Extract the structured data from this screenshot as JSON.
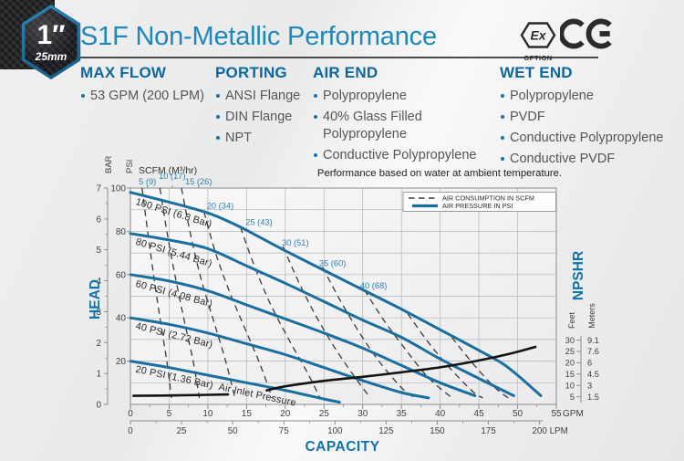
{
  "header": {
    "badge": {
      "size_label": "1″",
      "metric_label": "25mm"
    },
    "title": "S1F Non-Metallic Performance",
    "certifications": {
      "ex_label": "Ex",
      "ex_caption": "OPTION",
      "ce_label": "CE"
    }
  },
  "specs": {
    "columns": [
      {
        "title": "MAX FLOW",
        "items": [
          "53 GPM (200 LPM)"
        ]
      },
      {
        "title": "PORTING",
        "items": [
          "ANSI Flange",
          "DIN Flange",
          "NPT"
        ]
      },
      {
        "title": "AIR END",
        "items": [
          "Polypropylene",
          "40% Glass Filled\nPolypropylene",
          "Conductive Polypropylene"
        ]
      },
      {
        "title": "WET END",
        "items": [
          "Polypropylene",
          "PVDF",
          "Conductive Polypropylene",
          "Conductive PVDF"
        ]
      }
    ]
  },
  "chart_data": {
    "type": "line",
    "note": "Performance based on water at ambient temperature.",
    "top_axis_label": "SCFM (M³/hr)",
    "left_axis": {
      "title": "HEAD",
      "bar_label": "BAR",
      "psi_label": "PSI",
      "bar_ticks": [
        0,
        1,
        2,
        3,
        4,
        5,
        6,
        7
      ],
      "psi_ticks": [
        20,
        40,
        60,
        80,
        100
      ],
      "psi_range": [
        0,
        100
      ]
    },
    "bottom_axis": {
      "title": "CAPACITY",
      "gpm_ticks": [
        0,
        5,
        10,
        15,
        20,
        25,
        30,
        35,
        40,
        45,
        50,
        55
      ],
      "gpm_unit": "GPM",
      "lpm_ticks": [
        0,
        25,
        50,
        75,
        100,
        125,
        150,
        175,
        200
      ],
      "lpm_unit": "LPM",
      "gpm_range": [
        0,
        55
      ]
    },
    "right_axis": {
      "title": "NPSHR",
      "feet_label": "Feet",
      "meters_label": "Meters",
      "ticks": [
        {
          "feet": "30",
          "meters": "9.1"
        },
        {
          "feet": "25",
          "meters": "7.6"
        },
        {
          "feet": "20",
          "meters": "6"
        },
        {
          "feet": "15",
          "meters": "4.5"
        },
        {
          "feet": "10",
          "meters": "3"
        },
        {
          "feet": "5",
          "meters": "1.5"
        }
      ]
    },
    "legend": [
      {
        "label": "AIR CONSUMPTION IN SCFM",
        "style": "dashed"
      },
      {
        "label": "AIR PRESSURE IN PSI",
        "style": "solid"
      }
    ],
    "pressure_curves": [
      {
        "label": "100 PSI (6.8 Bar)",
        "label_at": [
          0.6,
          92.5
        ],
        "label_angle": 17,
        "points": [
          [
            0,
            98
          ],
          [
            5,
            93.5
          ],
          [
            10,
            88.5
          ],
          [
            13,
            84
          ],
          [
            15,
            80.5
          ],
          [
            20,
            71
          ],
          [
            25,
            62
          ],
          [
            30,
            53
          ],
          [
            35,
            44
          ],
          [
            40,
            34.5
          ],
          [
            45,
            25
          ],
          [
            48,
            19
          ],
          [
            50,
            13.5
          ],
          [
            53,
            4
          ]
        ]
      },
      {
        "label": "80 PSI (5.44 Bar)",
        "label_at": [
          0.6,
          74
        ],
        "label_angle": 16.5,
        "points": [
          [
            0,
            79
          ],
          [
            5,
            76
          ],
          [
            10,
            72
          ],
          [
            15,
            64
          ],
          [
            20,
            56
          ],
          [
            25,
            47.5
          ],
          [
            30,
            39
          ],
          [
            35,
            31
          ],
          [
            40,
            21
          ],
          [
            45,
            12
          ],
          [
            49.5,
            4
          ]
        ]
      },
      {
        "label": "60 PSI (4.08 Bar)",
        "label_at": [
          0.6,
          54.5
        ],
        "label_angle": 15,
        "points": [
          [
            0,
            60
          ],
          [
            5,
            57
          ],
          [
            10,
            52.5
          ],
          [
            15,
            46
          ],
          [
            20,
            39.5
          ],
          [
            25,
            33
          ],
          [
            30,
            26
          ],
          [
            35,
            18
          ],
          [
            40,
            10
          ],
          [
            44.5,
            4
          ]
        ]
      },
      {
        "label": "40 PSI (2.72 Bar)",
        "label_at": [
          0.6,
          35
        ],
        "label_angle": 14,
        "points": [
          [
            0,
            40
          ],
          [
            5,
            37
          ],
          [
            10,
            33
          ],
          [
            15,
            28
          ],
          [
            20,
            23
          ],
          [
            25,
            17
          ],
          [
            30,
            11
          ],
          [
            35,
            5.5
          ],
          [
            38.5,
            3
          ]
        ]
      },
      {
        "label": "20 PSI (1.36 Bar)  Air Inlet Pressure",
        "label_at": [
          0.6,
          15
        ],
        "label_angle": 12,
        "points": [
          [
            0,
            20
          ],
          [
            5,
            17
          ],
          [
            10,
            13.5
          ],
          [
            15,
            10
          ],
          [
            20,
            6.5
          ],
          [
            25,
            2.5
          ],
          [
            27,
            1
          ]
        ]
      }
    ],
    "consumption_curves": [
      {
        "label": "5 (9)",
        "label_above": true,
        "raised": false,
        "label_at": [
          2.2
        ],
        "points": [
          [
            1.5,
            100
          ],
          [
            2.3,
            78
          ],
          [
            3.1,
            57
          ],
          [
            3.9,
            38
          ],
          [
            4.7,
            20
          ],
          [
            5.3,
            3
          ]
        ]
      },
      {
        "label": "10 (17)",
        "label_above": true,
        "raised": true,
        "label_at": [
          5.4
        ],
        "points": [
          [
            3.8,
            100
          ],
          [
            4.8,
            78
          ],
          [
            5.9,
            57
          ],
          [
            7.0,
            38
          ],
          [
            8.1,
            20
          ],
          [
            8.9,
            3
          ]
        ]
      },
      {
        "label": "15 (26)",
        "label_above": true,
        "raised": false,
        "label_at": [
          8.8
        ],
        "points": [
          [
            6.6,
            100
          ],
          [
            7.8,
            78
          ],
          [
            9.2,
            57
          ],
          [
            10.8,
            38
          ],
          [
            12.3,
            20
          ],
          [
            13.5,
            3
          ]
        ]
      },
      {
        "label": "20 (34)",
        "label_above": false,
        "label_at": [
          11.6,
          90.5
        ],
        "points": [
          [
            9.5,
            89
          ],
          [
            11,
            70
          ],
          [
            12.8,
            52
          ],
          [
            14.8,
            35
          ],
          [
            16.8,
            18
          ],
          [
            18.3,
            3
          ]
        ]
      },
      {
        "label": "25 (43)",
        "label_above": false,
        "label_at": [
          16.6,
          83
        ],
        "points": [
          [
            14.2,
            82
          ],
          [
            16,
            64
          ],
          [
            18,
            47
          ],
          [
            20.3,
            31
          ],
          [
            22.8,
            15
          ],
          [
            24.5,
            3
          ]
        ]
      },
      {
        "label": "30 (51)",
        "label_above": false,
        "label_at": [
          21.3,
          73.5
        ],
        "points": [
          [
            19.7,
            73
          ],
          [
            21.8,
            56
          ],
          [
            24.1,
            40
          ],
          [
            26.6,
            25
          ],
          [
            29.3,
            11
          ],
          [
            31,
            3
          ]
        ]
      },
      {
        "label": "35 (60)",
        "label_above": false,
        "label_at": [
          26.1,
          64
        ],
        "points": [
          [
            24.8,
            63.5
          ],
          [
            27.1,
            48
          ],
          [
            29.6,
            33
          ],
          [
            32.3,
            19
          ],
          [
            35.2,
            7
          ],
          [
            36.8,
            3
          ]
        ]
      },
      {
        "label": "40 (68)",
        "label_above": false,
        "label_at": [
          31.4,
          53.5
        ],
        "points": [
          [
            30.2,
            53
          ],
          [
            32.7,
            39
          ],
          [
            35.4,
            26
          ],
          [
            38.3,
            13
          ],
          [
            41,
            4.5
          ],
          [
            41.8,
            3
          ]
        ]
      },
      {
        "label": null,
        "label_above": false,
        "label_at": null,
        "points": [
          [
            35.8,
            42
          ],
          [
            38.4,
            29
          ],
          [
            41.2,
            17
          ],
          [
            44.2,
            6
          ],
          [
            45.5,
            3
          ]
        ]
      },
      {
        "label": null,
        "label_above": false,
        "label_at": null,
        "points": [
          [
            41.5,
            31
          ],
          [
            44.2,
            19
          ],
          [
            47,
            8
          ],
          [
            48.8,
            3
          ]
        ]
      }
    ],
    "npshr_curve": {
      "unit": "feet",
      "segments": [
        [
          [
            0.4,
            5.4
          ],
          [
            6,
            5.6
          ],
          [
            12.6,
            6
          ]
        ],
        [
          [
            17.6,
            7.8
          ],
          [
            20,
            9.6
          ],
          [
            25,
            12
          ],
          [
            30,
            13.8
          ],
          [
            35,
            15.8
          ],
          [
            40,
            18
          ],
          [
            45,
            21
          ],
          [
            49,
            24
          ],
          [
            52.3,
            27
          ]
        ]
      ]
    },
    "colors": {
      "pressure": "#1b6f9e",
      "consumption": "#3a3a3a",
      "npshr": "#141414",
      "scfm_label": "#2f7fae",
      "axis_text": "#3f4042",
      "grid": "#b3b5b7",
      "border": "#898b8d",
      "accent": "#1273a8",
      "curve_label": "#2b2b2b"
    }
  }
}
